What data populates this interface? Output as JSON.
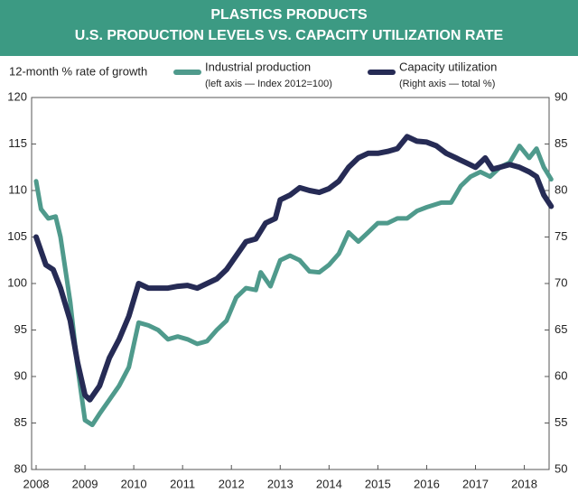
{
  "chart_data": {
    "type": "line",
    "title": "PLASTICS PRODUCTS",
    "subtitle": "U.S. PRODUCTION LEVELS VS. CAPACITY UTILIZATION RATE",
    "y_label": "12-month % rate of growth",
    "xlim": [
      2008,
      2018.6
    ],
    "xticks": [
      2008,
      2009,
      2010,
      2011,
      2012,
      2013,
      2014,
      2015,
      2016,
      2017,
      2018
    ],
    "ylim": [
      80,
      120
    ],
    "yticks": [
      80,
      85,
      90,
      95,
      100,
      105,
      110,
      115,
      120
    ],
    "y2lim": [
      50,
      90
    ],
    "y2ticks": [
      50,
      55,
      60,
      65,
      70,
      75,
      80,
      85,
      90
    ],
    "grid": false,
    "series": [
      {
        "name": "Industrial production",
        "note": "(left axis — Index 2012=100)",
        "color": "#4f9a8c",
        "axis": "y",
        "x": [
          2008.0,
          2008.1,
          2008.25,
          2008.4,
          2008.5,
          2008.7,
          2008.85,
          2009.0,
          2009.15,
          2009.3,
          2009.5,
          2009.7,
          2009.9,
          2010.1,
          2010.3,
          2010.5,
          2010.7,
          2010.9,
          2011.1,
          2011.3,
          2011.5,
          2011.7,
          2011.9,
          2012.1,
          2012.3,
          2012.5,
          2012.6,
          2012.8,
          2013.0,
          2013.2,
          2013.4,
          2013.6,
          2013.8,
          2014.0,
          2014.2,
          2014.4,
          2014.6,
          2014.8,
          2015.0,
          2015.2,
          2015.4,
          2015.6,
          2015.8,
          2016.0,
          2016.3,
          2016.5,
          2016.7,
          2016.9,
          2017.1,
          2017.3,
          2017.5,
          2017.7,
          2017.9,
          2018.1,
          2018.25,
          2018.4,
          2018.55
        ],
        "values": [
          111,
          108,
          107,
          107.2,
          105,
          98,
          91,
          85.3,
          84.8,
          86,
          87.5,
          89,
          91,
          95.8,
          95.5,
          95,
          94,
          94.3,
          94,
          93.5,
          93.8,
          95,
          96,
          98.5,
          99.5,
          99.3,
          101.2,
          99.7,
          102.5,
          103,
          102.5,
          101.3,
          101.2,
          102,
          103.2,
          105.5,
          104.5,
          105.5,
          106.5,
          106.5,
          107,
          107,
          107.8,
          108.2,
          108.7,
          108.7,
          110.5,
          111.5,
          112,
          111.5,
          112.5,
          113,
          114.8,
          113.5,
          114.5,
          112.5,
          111.2
        ]
      },
      {
        "name": "Capacity utilization",
        "note": "(Right axis — total %)",
        "color": "#262b55",
        "axis": "y2",
        "x": [
          2008.0,
          2008.2,
          2008.35,
          2008.5,
          2008.7,
          2008.85,
          2009.0,
          2009.1,
          2009.3,
          2009.5,
          2009.7,
          2009.9,
          2010.1,
          2010.3,
          2010.5,
          2010.7,
          2010.9,
          2011.1,
          2011.3,
          2011.5,
          2011.7,
          2011.9,
          2012.1,
          2012.3,
          2012.5,
          2012.7,
          2012.9,
          2013.0,
          2013.2,
          2013.4,
          2013.6,
          2013.8,
          2014.0,
          2014.2,
          2014.4,
          2014.6,
          2014.8,
          2015.0,
          2015.2,
          2015.4,
          2015.6,
          2015.8,
          2016.0,
          2016.2,
          2016.4,
          2016.6,
          2016.8,
          2017.0,
          2017.2,
          2017.35,
          2017.5,
          2017.7,
          2017.9,
          2018.1,
          2018.25,
          2018.4,
          2018.55
        ],
        "values": [
          75,
          72,
          71.5,
          69.5,
          66,
          61.5,
          58,
          57.5,
          59,
          62,
          64,
          66.5,
          70,
          69.5,
          69.5,
          69.5,
          69.7,
          69.8,
          69.5,
          70,
          70.5,
          71.5,
          73,
          74.5,
          74.8,
          76.5,
          77,
          79,
          79.5,
          80.3,
          80,
          79.8,
          80.2,
          81,
          82.5,
          83.5,
          84,
          84,
          84.2,
          84.5,
          85.8,
          85.3,
          85.2,
          84.8,
          84,
          83.5,
          83,
          82.5,
          83.5,
          82.3,
          82.5,
          82.8,
          82.5,
          82,
          81.5,
          79.5,
          78.3
        ]
      }
    ]
  }
}
